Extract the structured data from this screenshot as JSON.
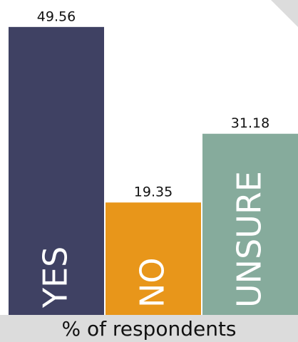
{
  "chart_data": {
    "type": "bar",
    "categories": [
      "YES",
      "NO",
      "UNSURE"
    ],
    "values": [
      49.56,
      19.35,
      31.18
    ],
    "colors": [
      "#3f4163",
      "#e8961a",
      "#86ab9c"
    ],
    "xlabel": "% of respondents",
    "ylim": [
      0,
      54.2
    ]
  }
}
